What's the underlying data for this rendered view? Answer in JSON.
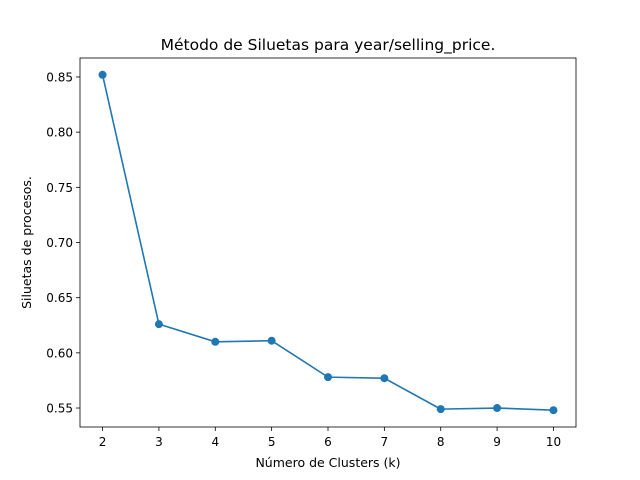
{
  "chart_data": {
    "type": "line",
    "title": "Método de Siluetas para year/selling_price.",
    "xlabel": "Número de Clusters (k)",
    "ylabel": "Siluetas de procesos.",
    "x": [
      2,
      3,
      4,
      5,
      6,
      7,
      8,
      9,
      10
    ],
    "series": [
      {
        "values": [
          0.852,
          0.626,
          0.61,
          0.611,
          0.578,
          0.577,
          0.549,
          0.55,
          0.548
        ],
        "color": "#1f77b4",
        "marker": "circle"
      }
    ],
    "xticks": [
      "2",
      "3",
      "4",
      "5",
      "6",
      "7",
      "8",
      "9",
      "10"
    ],
    "yticks": [
      "0.55",
      "0.60",
      "0.65",
      "0.70",
      "0.75",
      "0.80",
      "0.85"
    ],
    "xlim": [
      1.6,
      10.4
    ],
    "ylim": [
      0.5328,
      0.8672
    ],
    "grid": false,
    "legend": "none"
  }
}
